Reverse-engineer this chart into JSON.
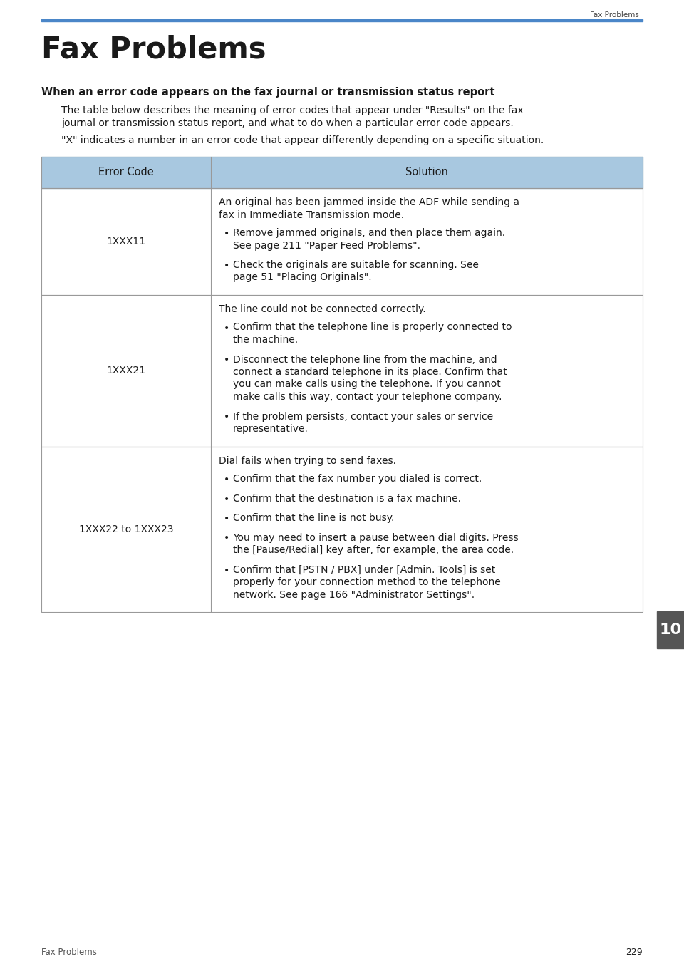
{
  "page_bg": "#ffffff",
  "header_text": "Fax Problems",
  "header_line_color": "#4a86c8",
  "title": "Fax Problems",
  "title_color": "#1a1a1a",
  "subtitle": "When an error code appears on the fax journal or transmission status report",
  "subtitle_color": "#1a1a1a",
  "intro1_lines": [
    "The table below describes the meaning of error codes that appear under \"Results\" on the fax",
    "journal or transmission status report, and what to do when a particular error code appears."
  ],
  "intro2": "\"X\" indicates a number in an error code that appear differently depending on a specific situation.",
  "table_header_bg": "#a8c8e0",
  "table_header_text_color": "#1a1a1a",
  "table_border_color": "#999999",
  "col1_header": "Error Code",
  "col2_header": "Solution",
  "rows": [
    {
      "code": "1XXX11",
      "solution_intro": "An original has been jammed inside the ADF while sending a\nfax in Immediate Transmission mode.",
      "bullets": [
        [
          "Remove jammed originals, and then place them again.",
          "See page 211 \"Paper Feed Problems\"."
        ],
        [
          "Check the originals are suitable for scanning. See",
          "page 51 \"Placing Originals\"."
        ]
      ]
    },
    {
      "code": "1XXX21",
      "solution_intro": "The line could not be connected correctly.",
      "bullets": [
        [
          "Confirm that the telephone line is properly connected to",
          "the machine."
        ],
        [
          "Disconnect the telephone line from the machine, and",
          "connect a standard telephone in its place. Confirm that",
          "you can make calls using the telephone. If you cannot",
          "make calls this way, contact your telephone company."
        ],
        [
          "If the problem persists, contact your sales or service",
          "representative."
        ]
      ]
    },
    {
      "code": "1XXX22 to 1XXX23",
      "solution_intro": "Dial fails when trying to send faxes.",
      "bullets": [
        [
          "Confirm that the fax number you dialed is correct."
        ],
        [
          "Confirm that the destination is a fax machine."
        ],
        [
          "Confirm that the line is not busy."
        ],
        [
          "You may need to insert a pause between dial digits. Press",
          "the [Pause/Redial] key after, for example, the area code."
        ],
        [
          "Confirm that [PSTN / PBX] under [Admin. Tools] is set",
          "properly for your connection method to the telephone",
          "network. See page 166 \"Administrator Settings\"."
        ]
      ]
    }
  ],
  "footer_left": "Fax Problems",
  "page_number": "229",
  "tab_number": "10",
  "tab_bg": "#555555",
  "tab_text_color": "#ffffff"
}
